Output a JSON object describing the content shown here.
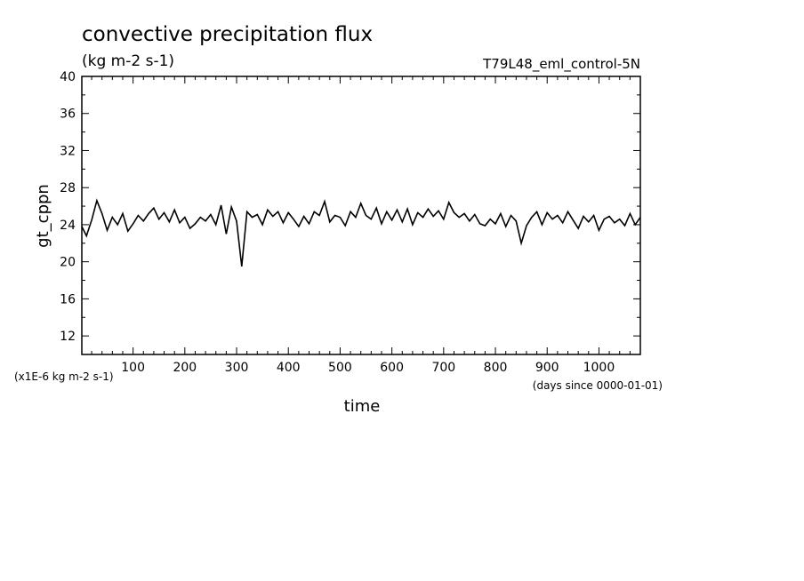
{
  "chart_data": {
    "type": "line",
    "title": "convective precipitation flux",
    "units": "(kg m-2 s-1)",
    "dataset_label": "T79L48_eml_control-5N",
    "xlabel": "time",
    "x_units": "(days since 0000-01-01)",
    "ylabel": "gt_cppn",
    "y_scale_note": "(x1E-6 kg m-2 s-1)",
    "xlim": [
      1,
      1080
    ],
    "ylim": [
      10,
      40
    ],
    "x_ticks": [
      100,
      200,
      300,
      400,
      500,
      600,
      700,
      800,
      900,
      1000
    ],
    "y_ticks": [
      12,
      16,
      20,
      24,
      28,
      32,
      36,
      40
    ],
    "grid": false,
    "series": [
      {
        "color": "#000000",
        "x": [
          1,
          10,
          20,
          30,
          40,
          50,
          60,
          70,
          80,
          90,
          100,
          110,
          120,
          130,
          140,
          150,
          160,
          170,
          180,
          190,
          200,
          210,
          220,
          230,
          240,
          250,
          260,
          270,
          280,
          290,
          300,
          310,
          320,
          330,
          340,
          350,
          360,
          370,
          380,
          390,
          400,
          410,
          420,
          430,
          440,
          450,
          460,
          470,
          480,
          490,
          500,
          510,
          520,
          530,
          540,
          550,
          560,
          570,
          580,
          590,
          600,
          610,
          620,
          630,
          640,
          650,
          660,
          670,
          680,
          690,
          700,
          710,
          720,
          730,
          740,
          750,
          760,
          770,
          780,
          790,
          800,
          810,
          820,
          830,
          840,
          850,
          860,
          870,
          880,
          890,
          900,
          910,
          920,
          930,
          940,
          950,
          960,
          970,
          980,
          990,
          1000,
          1010,
          1020,
          1030,
          1040,
          1050,
          1060,
          1070,
          1080
        ],
        "values": [
          23.8,
          22.8,
          24.5,
          26.6,
          25.2,
          23.4,
          24.8,
          24.0,
          25.2,
          23.3,
          24.1,
          25.0,
          24.4,
          25.2,
          25.8,
          24.6,
          25.3,
          24.3,
          25.6,
          24.2,
          24.8,
          23.6,
          24.1,
          24.8,
          24.4,
          25.1,
          24.0,
          26.1,
          23.0,
          25.9,
          24.4,
          19.5,
          25.4,
          24.8,
          25.1,
          24.0,
          25.6,
          24.9,
          25.4,
          24.2,
          25.3,
          24.6,
          23.8,
          24.9,
          24.1,
          25.4,
          25.0,
          26.5,
          24.3,
          25.0,
          24.8,
          23.9,
          25.4,
          24.8,
          26.3,
          25.0,
          24.6,
          25.8,
          24.1,
          25.4,
          24.5,
          25.6,
          24.3,
          25.7,
          24.0,
          25.3,
          24.8,
          25.7,
          24.9,
          25.5,
          24.6,
          26.4,
          25.3,
          24.8,
          25.2,
          24.4,
          25.1,
          24.1,
          23.9,
          24.6,
          24.1,
          25.2,
          23.8,
          25.0,
          24.4,
          22.0,
          23.9,
          24.8,
          25.4,
          24.0,
          25.3,
          24.6,
          25.0,
          24.2,
          25.4,
          24.5,
          23.6,
          24.9,
          24.3,
          25.0,
          23.4,
          24.6,
          24.9,
          24.2,
          24.6,
          23.9,
          25.2,
          24.0,
          24.8
        ]
      }
    ]
  }
}
